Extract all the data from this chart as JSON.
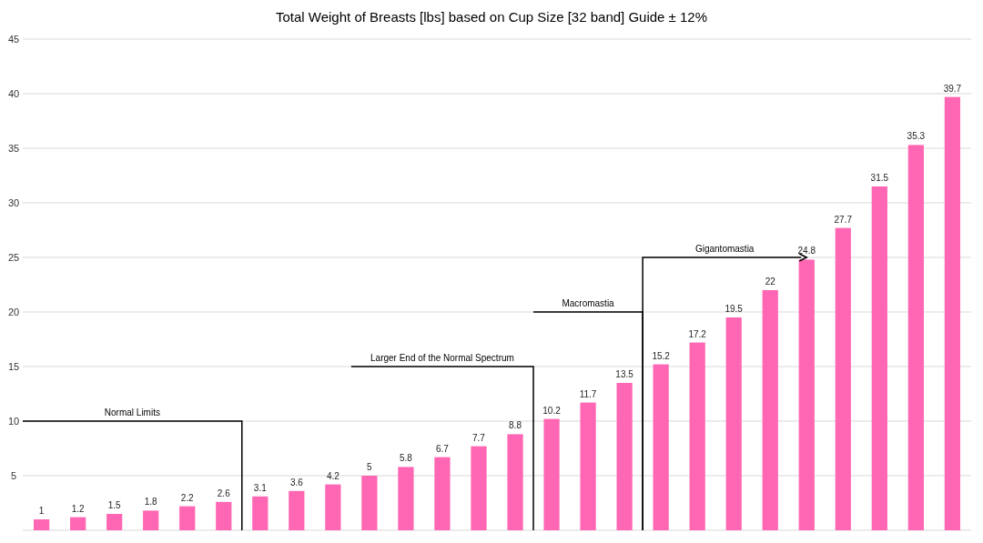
{
  "chart_data": {
    "type": "bar",
    "title": "Total Weight of Breasts [lbs] based on Cup Size [32 band] Guide ± 12%",
    "categories": [
      null,
      null,
      null,
      null,
      null,
      null,
      null,
      null,
      null,
      null,
      null,
      null,
      null,
      null,
      null,
      null,
      null,
      null,
      null,
      null,
      null,
      null,
      null,
      null,
      null,
      null
    ],
    "values": [
      1,
      1.2,
      1.5,
      1.8,
      2.2,
      2.6,
      3.1,
      3.6,
      4.2,
      5,
      5.8,
      6.7,
      7.7,
      8.8,
      10.2,
      11.7,
      13.5,
      15.2,
      17.2,
      19.5,
      22,
      24.8,
      27.7,
      31.5,
      35.3,
      39.7
    ],
    "color": "#ff66b3",
    "ylim": [
      0,
      45
    ],
    "yticks": [
      5,
      10,
      15,
      20,
      25,
      30,
      35,
      40,
      45
    ],
    "grid": "y",
    "data_labels": true,
    "annotations": [
      "Normal Limits",
      "Larger End of the Normal Spectrum",
      "Macromastia",
      "Gigantomastia"
    ]
  }
}
